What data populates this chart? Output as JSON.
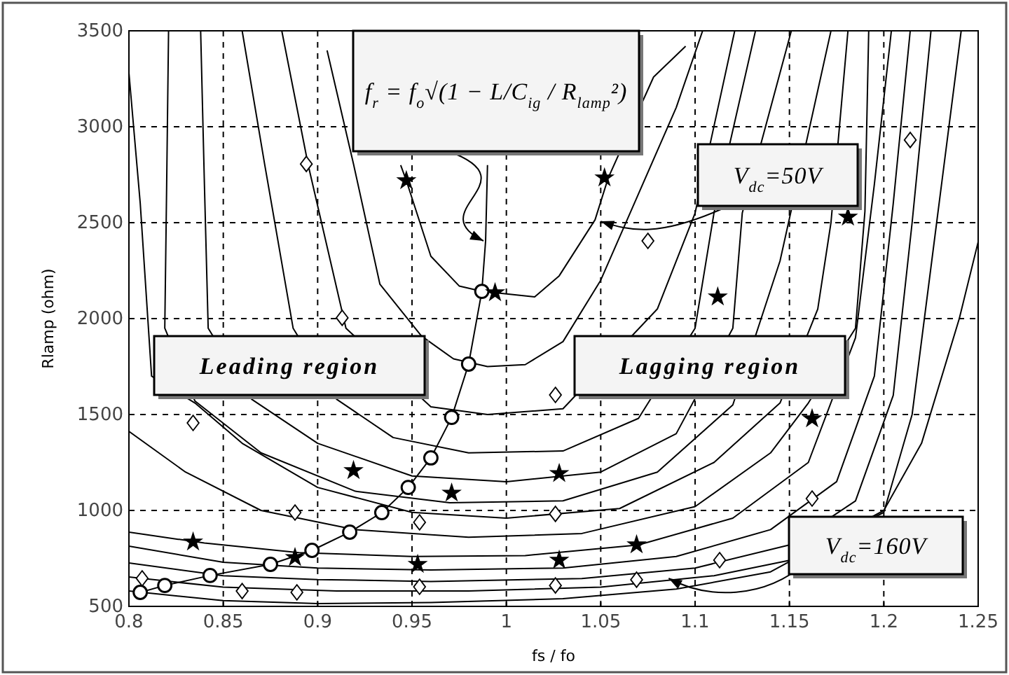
{
  "chart_data": {
    "type": "line",
    "xlabel": "fs / fo",
    "ylabel": "Rlamp (ohm)",
    "xlim": [
      0.8,
      1.25
    ],
    "ylim": [
      500,
      3500
    ],
    "xticks": [
      0.8,
      0.85,
      0.9,
      0.95,
      1,
      1.05,
      1.1,
      1.15,
      1.2,
      1.25
    ],
    "yticks": [
      500,
      1000,
      1500,
      2000,
      2500,
      3000,
      3500
    ],
    "grid": true,
    "series": [
      {
        "marker": "none",
        "color": "#000000",
        "x": [
          0.944,
          0.947,
          0.96,
          0.975,
          0.987,
          1.015,
          1.028,
          1.047,
          1.054,
          1.078,
          1.095
        ],
        "values": [
          2800,
          2719,
          2325,
          2170,
          2142,
          2113,
          2223,
          2515,
          2734,
          3259,
          3420
        ]
      },
      {
        "marker": "none",
        "color": "#000000",
        "x": [
          0.905,
          0.919,
          0.933,
          0.955,
          0.972,
          0.99,
          1.01,
          1.03,
          1.05,
          1.07,
          1.09,
          1.104
        ],
        "values": [
          3398,
          2806,
          2179,
          1909,
          1790,
          1750,
          1760,
          1880,
          2200,
          2650,
          3100,
          3500
        ]
      },
      {
        "marker": "none",
        "color": "#000000",
        "x": [
          0.881,
          0.895,
          0.915,
          0.96,
          0.99,
          1.03,
          1.08,
          1.1,
          1.121
        ],
        "values": [
          3500,
          2800,
          1950,
          1540,
          1500,
          1530,
          2050,
          2550,
          3500
        ]
      },
      {
        "marker": "none",
        "color": "#000000",
        "x": [
          0.86,
          0.872,
          0.887,
          0.91,
          0.94,
          0.98,
          1.03,
          1.07,
          1.1,
          1.11,
          1.132
        ],
        "values": [
          3500,
          2800,
          1950,
          1580,
          1380,
          1300,
          1310,
          1480,
          1950,
          2550,
          3500
        ]
      },
      {
        "marker": "none",
        "color": "#000000",
        "x": [
          0.838,
          0.84,
          0.842,
          0.865,
          0.9,
          0.95,
          1.0,
          1.05,
          1.09,
          1.12,
          1.125,
          1.151
        ],
        "values": [
          3500,
          2700,
          1950,
          1580,
          1350,
          1180,
          1150,
          1200,
          1400,
          1950,
          2550,
          3500
        ]
      },
      {
        "marker": "none",
        "color": "#000000",
        "x": [
          0.821,
          0.82,
          0.819,
          0.835,
          0.87,
          0.92,
          0.97,
          1.03,
          1.08,
          1.12,
          1.145,
          1.172
        ],
        "values": [
          3500,
          2700,
          1950,
          1570,
          1300,
          1100,
          1040,
          1050,
          1200,
          1550,
          2300,
          3500
        ]
      },
      {
        "marker": "none",
        "color": "#000000",
        "x": [
          0.8,
          0.806,
          0.81,
          0.812,
          0.835,
          0.86,
          0.9,
          0.95,
          1.0,
          1.06,
          1.11,
          1.145,
          1.165,
          1.172,
          1.181
        ],
        "values": [
          3281,
          2600,
          2000,
          1700,
          1560,
          1350,
          1120,
          990,
          960,
          1010,
          1250,
          1560,
          2050,
          2500,
          3500
        ]
      },
      {
        "marker": "none",
        "color": "#000000",
        "x": [
          0.8,
          0.83,
          0.87,
          0.92,
          0.98,
          1.04,
          1.1,
          1.14,
          1.16,
          1.185,
          1.19,
          1.192
        ],
        "values": [
          1412,
          1200,
          1000,
          900,
          860,
          880,
          1020,
          1300,
          1560,
          1950,
          2560,
          3500
        ]
      },
      {
        "marker": "none",
        "color": "#000000",
        "x": [
          0.8,
          0.84,
          0.89,
          0.95,
          1.01,
          1.07,
          1.12,
          1.16,
          1.185,
          1.195,
          1.204
        ],
        "values": [
          887,
          830,
          780,
          760,
          765,
          820,
          960,
          1250,
          1900,
          2700,
          3500
        ]
      },
      {
        "marker": "none",
        "color": "#000000",
        "x": [
          0.8,
          0.85,
          0.9,
          0.96,
          1.03,
          1.09,
          1.14,
          1.175,
          1.195,
          1.205,
          1.214
        ],
        "values": [
          814,
          730,
          700,
          690,
          700,
          760,
          900,
          1150,
          1700,
          2600,
          3500
        ]
      },
      {
        "marker": "none",
        "color": "#000000",
        "x": [
          0.8,
          0.85,
          0.9,
          0.96,
          1.04,
          1.1,
          1.15,
          1.185,
          1.205,
          1.215,
          1.225
        ],
        "values": [
          726,
          660,
          640,
          630,
          645,
          700,
          820,
          1050,
          1600,
          2500,
          3500
        ]
      },
      {
        "marker": "none",
        "color": "#000000",
        "x": [
          0.8,
          0.85,
          0.91,
          0.98,
          1.05,
          1.11,
          1.15,
          1.2,
          1.215,
          1.228,
          1.241
        ],
        "values": [
          653,
          600,
          580,
          580,
          600,
          660,
          740,
          990,
          1500,
          2500,
          3500
        ]
      },
      {
        "marker": "none",
        "color": "#000000",
        "x": [
          0.8,
          0.85,
          0.9,
          0.96,
          1.03,
          1.09,
          1.14,
          1.2,
          1.22,
          1.24,
          1.25
        ],
        "values": [
          580,
          530,
          515,
          520,
          540,
          590,
          680,
          1000,
          1350,
          2000,
          2400
        ]
      },
      {
        "marker": "none",
        "color": "#000000",
        "x": [
          0.806,
          0.819,
          0.843,
          0.875,
          0.897,
          0.917,
          0.934,
          0.948,
          0.96,
          0.971,
          0.98,
          0.987,
          0.989,
          0.99
        ],
        "values": [
          573,
          609,
          661,
          719,
          792,
          887,
          989,
          1120,
          1274,
          1485,
          1763,
          2142,
          2405,
          2800
        ]
      },
      {
        "type": "scatter",
        "marker": "circle",
        "color": "#000000",
        "x": [
          0.806,
          0.819,
          0.843,
          0.875,
          0.897,
          0.917,
          0.934,
          0.948,
          0.96,
          0.971,
          0.98,
          0.987
        ],
        "values": [
          573,
          609,
          661,
          719,
          792,
          887,
          989,
          1120,
          1274,
          1485,
          1763,
          2142
        ]
      },
      {
        "type": "scatter",
        "marker": "diamond",
        "color": "#000000",
        "x": [
          0.894,
          0.913,
          1.214,
          1.075,
          0.834,
          0.888,
          0.954,
          1.026,
          1.026,
          0.807,
          0.86,
          0.889,
          0.954,
          1.026,
          1.069,
          1.113,
          1.162
        ],
        "values": [
          2806,
          2004,
          2931,
          2405,
          1456,
          989,
          938,
          1602,
          982,
          646,
          580,
          573,
          602,
          609,
          639,
          741,
          1062
        ]
      },
      {
        "type": "scatter",
        "marker": "star",
        "color": "#000000",
        "x": [
          0.947,
          0.994,
          1.052,
          1.181,
          1.112,
          0.834,
          0.888,
          0.919,
          0.971,
          0.953,
          1.028,
          1.028,
          1.069,
          1.162
        ],
        "values": [
          2719,
          2135,
          2734,
          2529,
          2113,
          836,
          755,
          1208,
          1091,
          719,
          1193,
          741,
          821,
          1478
        ]
      }
    ],
    "annotations": [
      "f$_{r}$ = f$_{o}$√(1 − L/C$_{ig}$ / R$_{lamp}$²)",
      {
        "text": "V$_{dc}$=50V",
        "x": 1.05,
        "y": 2507
      },
      "Leading region",
      "Lagging region",
      {
        "text": "V$_{dc}$=160V",
        "x": 1.086,
        "y": 646
      }
    ]
  }
}
